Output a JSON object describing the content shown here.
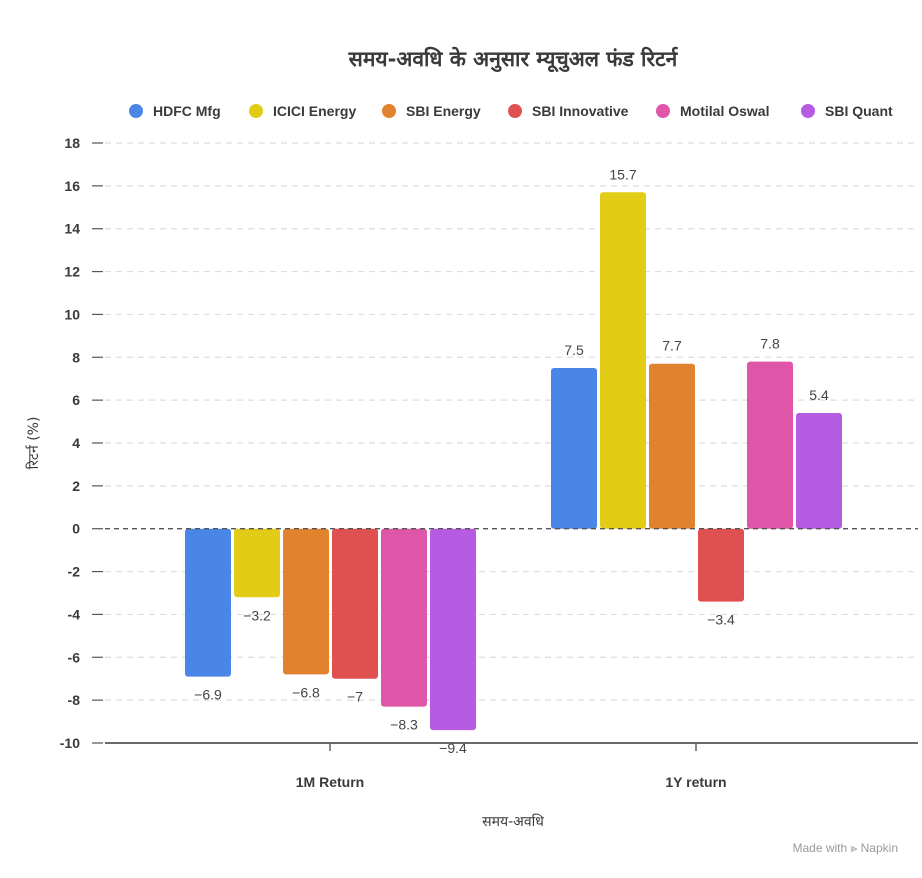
{
  "chart_data": {
    "type": "bar",
    "title": "समय-अवधि के अनुसार म्यूचुअल फंड रिटर्न",
    "xlabel": "समय-अवधि",
    "ylabel": "रिटर्न (%)",
    "ylim": [
      -10,
      18
    ],
    "yticks": [
      18,
      16,
      14,
      12,
      10,
      8,
      6,
      4,
      2,
      0,
      -2,
      -4,
      -6,
      -8,
      -10
    ],
    "categories": [
      "1M Return",
      "1Y return"
    ],
    "legend_position": "top",
    "series": [
      {
        "name": "HDFC Mfg",
        "color": "#4a86e8",
        "values": [
          -6.9,
          7.5
        ],
        "labels": [
          "−6.9",
          "7.5"
        ]
      },
      {
        "name": "ICICI Energy",
        "color": "#e2cc15",
        "values": [
          -3.2,
          15.7
        ],
        "labels": [
          "−3.2",
          "15.7"
        ]
      },
      {
        "name": "SBI Energy",
        "color": "#e0822e",
        "values": [
          -6.8,
          7.7
        ],
        "labels": [
          "−6.8",
          "7.7"
        ]
      },
      {
        "name": "SBI Innovative",
        "color": "#e05050",
        "values": [
          -7,
          -3.4
        ],
        "labels": [
          "−7",
          "−3.4"
        ]
      },
      {
        "name": "Motilal Oswal",
        "color": "#df56a8",
        "values": [
          -8.3,
          7.8
        ],
        "labels": [
          "−8.3",
          "7.8"
        ]
      },
      {
        "name": "SBI Quant",
        "color": "#b55ce3",
        "values": [
          -9.4,
          5.4
        ],
        "labels": [
          "−9.4",
          "5.4"
        ]
      }
    ]
  },
  "footer": {
    "made_with": "Made with",
    "brand": "Napkin"
  }
}
